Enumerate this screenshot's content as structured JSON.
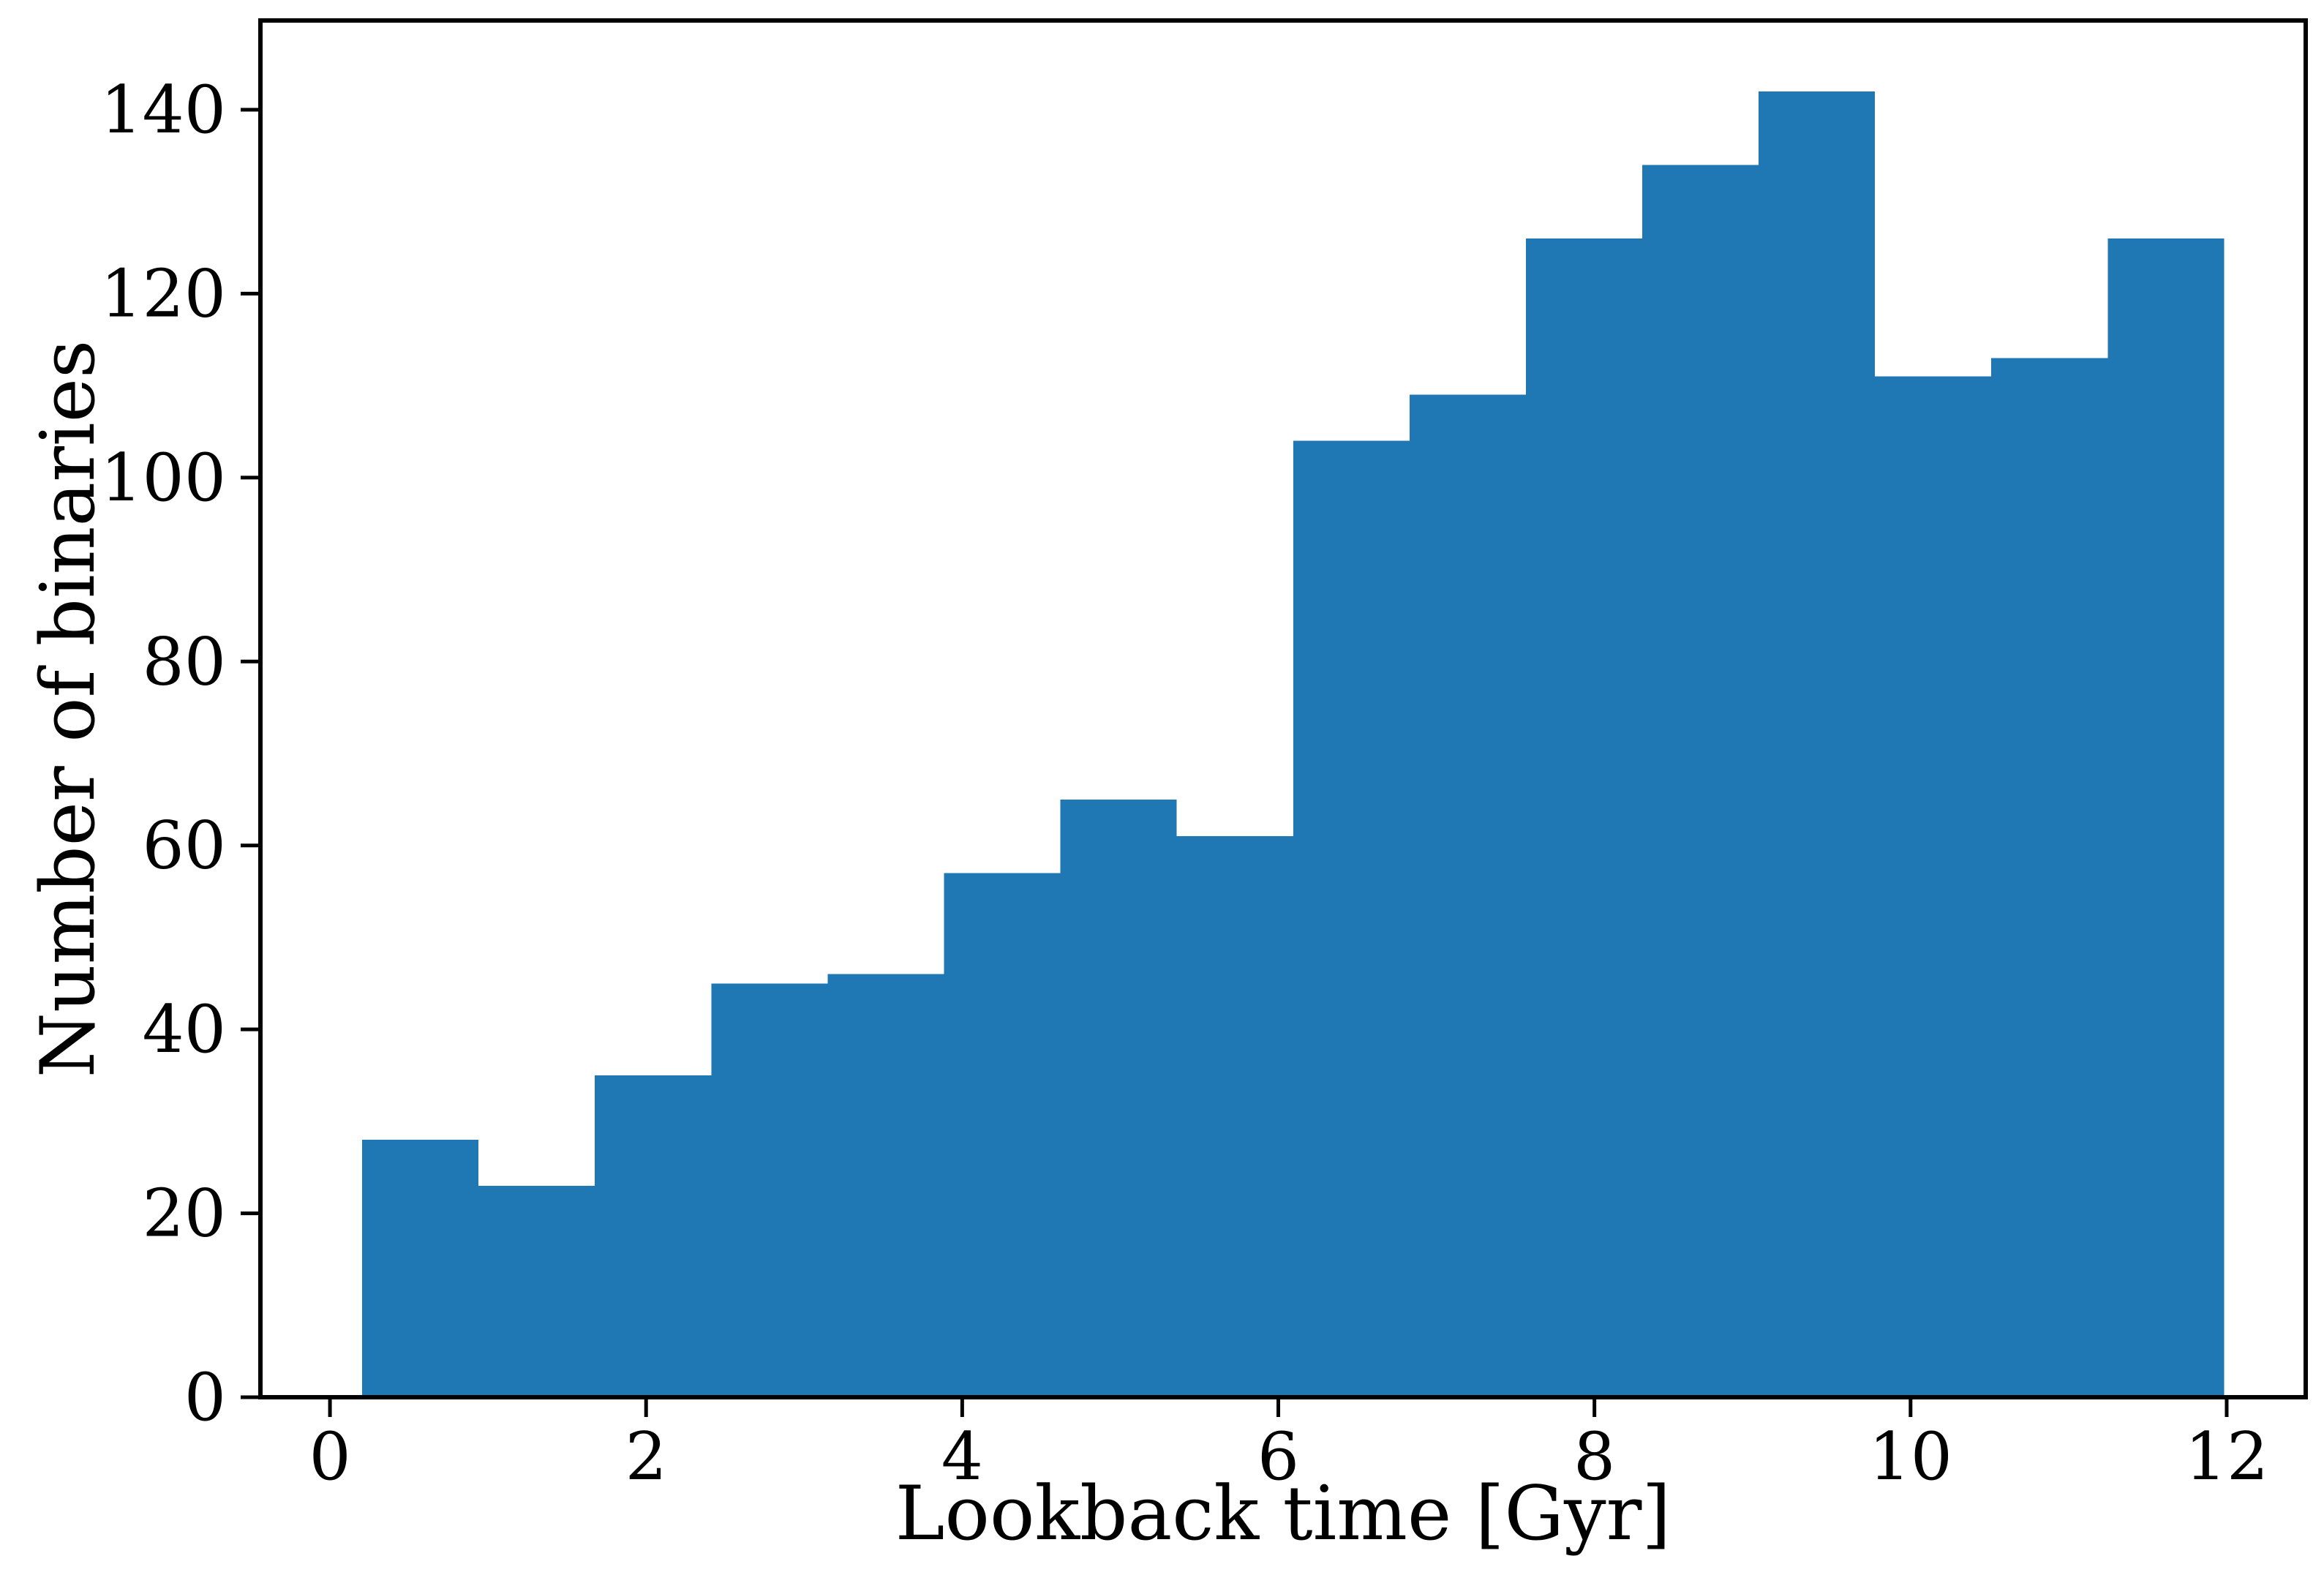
{
  "figure": {
    "background": "#ffffff"
  },
  "chart_data": {
    "type": "bar",
    "subtype": "histogram",
    "title": "",
    "xlabel": "Lookback time [Gyr]",
    "ylabel": "Number of binaries",
    "bar_color": "#1f77b4",
    "axis_color": "#000000",
    "bin_edges": [
      0.204,
      0.94,
      1.676,
      2.413,
      3.149,
      3.885,
      4.621,
      5.357,
      6.094,
      6.83,
      7.566,
      8.302,
      9.038,
      9.775,
      10.511,
      11.247,
      11.983
    ],
    "values": [
      28,
      23,
      35,
      45,
      46,
      57,
      65,
      61,
      104,
      109,
      126,
      134,
      142,
      111,
      113,
      126
    ],
    "xticks": [
      0,
      2,
      4,
      6,
      8,
      10,
      12
    ],
    "yticks": [
      0,
      20,
      40,
      60,
      80,
      100,
      120,
      140
    ],
    "xlim": [
      -0.44,
      12.5
    ],
    "ylim": [
      0,
      149.7
    ],
    "grid": false,
    "legend": null
  }
}
